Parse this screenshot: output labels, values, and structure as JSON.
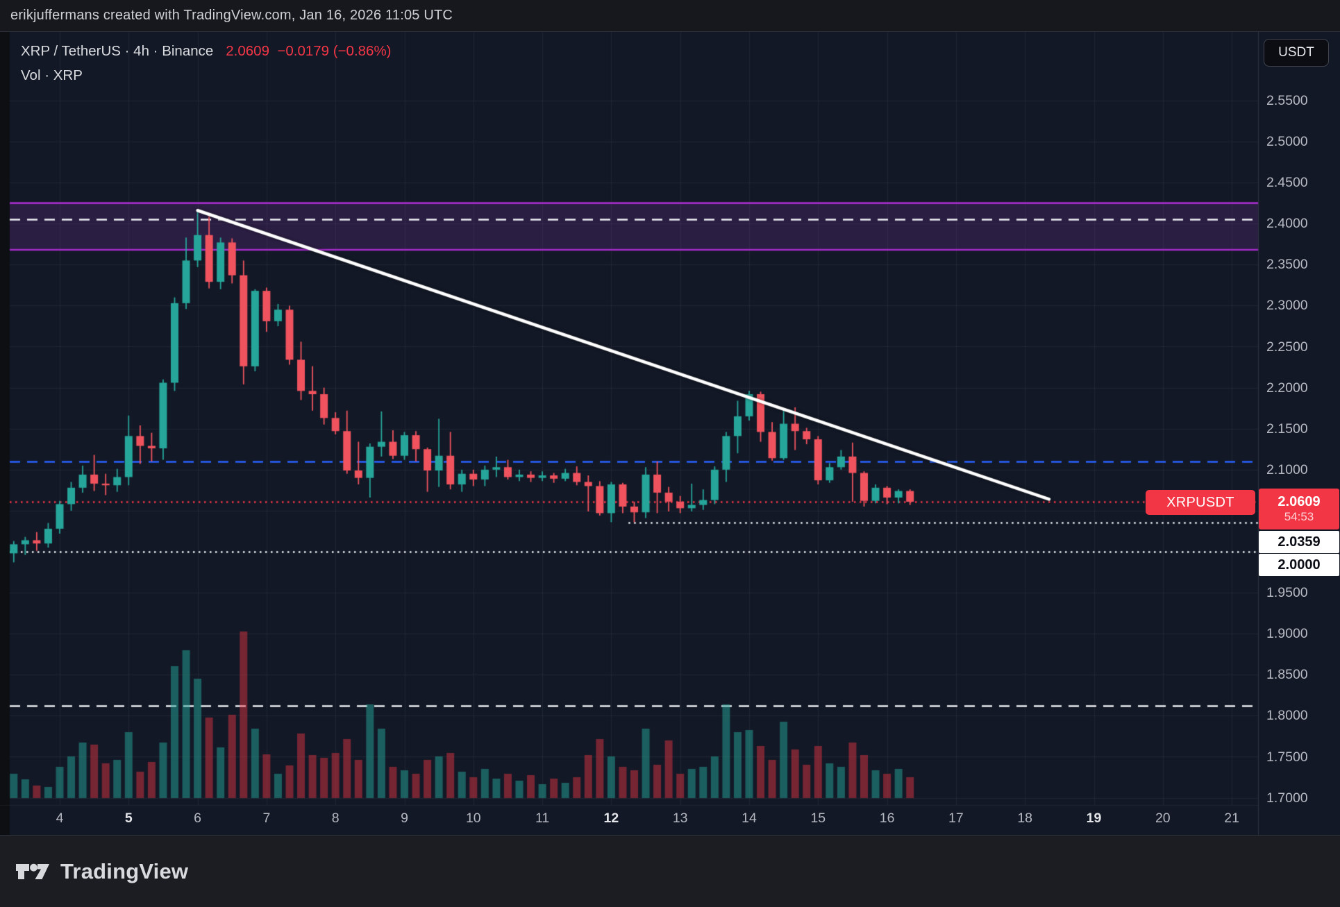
{
  "window": {
    "attribution": "erikjuffermans created with TradingView.com, Jan 16, 2026 11:05 UTC"
  },
  "legend": {
    "title": "XRP / TetherUS · 4h · Binance",
    "price": "2.0609",
    "change": "−0.0179 (−0.86%)",
    "indicator": "Vol · XRP"
  },
  "price_axis": {
    "currency": "USDT",
    "ticks": [
      "2.5500",
      "2.5000",
      "2.4500",
      "2.4000",
      "2.3500",
      "2.3000",
      "2.2500",
      "2.2000",
      "2.1500",
      "2.1000",
      "1.9500",
      "1.9000",
      "1.8500",
      "1.8000",
      "1.7500",
      "1.7000"
    ],
    "tick_values": [
      2.55,
      2.5,
      2.45,
      2.4,
      2.35,
      2.3,
      2.25,
      2.2,
      2.15,
      2.1,
      1.95,
      1.9,
      1.85,
      1.8,
      1.75,
      1.7
    ],
    "last_tag": {
      "price": "2.0609",
      "countdown": "54:53"
    },
    "level_tags": [
      "2.0359",
      "2.0000"
    ]
  },
  "time_axis": {
    "days": [
      4,
      5,
      6,
      7,
      8,
      9,
      10,
      11,
      12,
      13,
      14,
      15,
      16,
      17,
      18,
      19,
      20,
      21
    ],
    "bold_days": [
      5,
      12,
      19
    ]
  },
  "symbol_tag": "XRPUSDT",
  "footer": {
    "brand": "TradingView"
  },
  "colors": {
    "chart_bg": "#121826",
    "topbar_bg": "#17181d",
    "footer_bg": "#1b1d23",
    "gutter": "#0d0f13",
    "grid": "rgba(255,255,255,0.055)",
    "up": "#26a69a",
    "down": "#f0535e",
    "vol_up": "rgba(38,166,154,0.5)",
    "vol_down": "rgba(242,54,69,0.45)",
    "accent_red": "#f23645",
    "accent_blue": "#2962ff",
    "zone_line": "#a32cc8",
    "zone_fill": "rgba(160,60,200,0.18)",
    "white_line": "#eef0f4",
    "trendline": "#ffffff"
  },
  "chart_data": {
    "type": "candlestick",
    "title": "XRP / TetherUS · 4h · Binance",
    "symbol": "XRPUSDT",
    "exchange": "Binance",
    "interval": "4h",
    "last_price": 2.0609,
    "change": -0.0179,
    "change_pct": -0.86,
    "start_time": "Jan 3, 2026 08:00 UTC",
    "bar_interval_hours": 4,
    "x_axis_days_january": [
      4,
      5,
      6,
      7,
      8,
      9,
      10,
      11,
      12,
      13,
      14,
      15,
      16,
      17,
      18,
      19,
      20,
      21
    ],
    "ylim_visible": [
      1.7,
      2.58
    ],
    "grid": true,
    "volume_note": "v is relative volume height, max 240",
    "candles_ohlcv": [
      [
        1.998,
        2.013,
        1.987,
        2.009,
        35
      ],
      [
        2.009,
        2.018,
        1.996,
        2.014,
        27
      ],
      [
        2.014,
        2.024,
        2.001,
        2.01,
        18
      ],
      [
        2.01,
        2.035,
        2.005,
        2.028,
        16
      ],
      [
        2.028,
        2.062,
        2.022,
        2.058,
        45
      ],
      [
        2.058,
        2.085,
        2.05,
        2.078,
        60
      ],
      [
        2.078,
        2.105,
        2.072,
        2.094,
        80
      ],
      [
        2.094,
        2.118,
        2.074,
        2.083,
        77
      ],
      [
        2.083,
        2.095,
        2.069,
        2.081,
        50
      ],
      [
        2.081,
        2.101,
        2.073,
        2.091,
        55
      ],
      [
        2.091,
        2.166,
        2.081,
        2.141,
        95
      ],
      [
        2.141,
        2.154,
        2.107,
        2.129,
        38
      ],
      [
        2.129,
        2.145,
        2.11,
        2.126,
        52
      ],
      [
        2.126,
        2.21,
        2.112,
        2.206,
        80
      ],
      [
        2.206,
        2.31,
        2.196,
        2.303,
        190
      ],
      [
        2.303,
        2.383,
        2.296,
        2.355,
        213
      ],
      [
        2.355,
        2.416,
        2.347,
        2.386,
        172
      ],
      [
        2.386,
        2.409,
        2.321,
        2.329,
        116
      ],
      [
        2.329,
        2.383,
        2.32,
        2.377,
        73
      ],
      [
        2.377,
        2.382,
        2.327,
        2.337,
        120
      ],
      [
        2.337,
        2.355,
        2.204,
        2.226,
        240
      ],
      [
        2.226,
        2.32,
        2.22,
        2.318,
        100
      ],
      [
        2.318,
        2.322,
        2.268,
        2.281,
        63
      ],
      [
        2.281,
        2.302,
        2.275,
        2.295,
        35
      ],
      [
        2.295,
        2.3,
        2.228,
        2.234,
        47
      ],
      [
        2.234,
        2.256,
        2.185,
        2.196,
        93
      ],
      [
        2.196,
        2.226,
        2.172,
        2.192,
        62
      ],
      [
        2.192,
        2.2,
        2.155,
        2.163,
        58
      ],
      [
        2.163,
        2.17,
        2.143,
        2.147,
        65
      ],
      [
        2.147,
        2.172,
        2.095,
        2.099,
        85
      ],
      [
        2.099,
        2.134,
        2.082,
        2.09,
        55
      ],
      [
        2.09,
        2.132,
        2.066,
        2.128,
        135
      ],
      [
        2.128,
        2.171,
        2.116,
        2.134,
        100
      ],
      [
        2.134,
        2.148,
        2.113,
        2.117,
        45
      ],
      [
        2.117,
        2.146,
        2.112,
        2.142,
        40
      ],
      [
        2.142,
        2.147,
        2.11,
        2.125,
        35
      ],
      [
        2.125,
        2.127,
        2.073,
        2.099,
        55
      ],
      [
        2.099,
        2.162,
        2.079,
        2.117,
        60
      ],
      [
        2.117,
        2.146,
        2.076,
        2.082,
        65
      ],
      [
        2.082,
        2.1,
        2.073,
        2.095,
        38
      ],
      [
        2.095,
        2.1,
        2.08,
        2.088,
        30
      ],
      [
        2.088,
        2.105,
        2.08,
        2.1,
        42
      ],
      [
        2.1,
        2.116,
        2.091,
        2.103,
        28
      ],
      [
        2.103,
        2.112,
        2.088,
        2.091,
        35
      ],
      [
        2.091,
        2.1,
        2.086,
        2.094,
        25
      ],
      [
        2.094,
        2.098,
        2.085,
        2.09,
        33
      ],
      [
        2.09,
        2.098,
        2.086,
        2.093,
        20
      ],
      [
        2.093,
        2.096,
        2.084,
        2.089,
        28
      ],
      [
        2.089,
        2.101,
        2.086,
        2.096,
        22
      ],
      [
        2.096,
        2.104,
        2.081,
        2.085,
        30
      ],
      [
        2.085,
        2.093,
        2.049,
        2.08,
        62
      ],
      [
        2.08,
        2.086,
        2.044,
        2.047,
        85
      ],
      [
        2.047,
        2.085,
        2.036,
        2.082,
        60
      ],
      [
        2.082,
        2.084,
        2.047,
        2.055,
        45
      ],
      [
        2.055,
        2.061,
        2.036,
        2.048,
        40
      ],
      [
        2.048,
        2.103,
        2.041,
        2.094,
        100
      ],
      [
        2.094,
        2.11,
        2.047,
        2.072,
        48
      ],
      [
        2.072,
        2.079,
        2.049,
        2.061,
        83
      ],
      [
        2.061,
        2.068,
        2.047,
        2.053,
        35
      ],
      [
        2.053,
        2.083,
        2.049,
        2.057,
        42
      ],
      [
        2.057,
        2.076,
        2.051,
        2.063,
        45
      ],
      [
        2.063,
        2.104,
        2.058,
        2.1,
        60
      ],
      [
        2.1,
        2.146,
        2.085,
        2.141,
        135
      ],
      [
        2.141,
        2.184,
        2.12,
        2.165,
        95
      ],
      [
        2.165,
        2.196,
        2.16,
        2.192,
        98
      ],
      [
        2.192,
        2.195,
        2.134,
        2.146,
        75
      ],
      [
        2.146,
        2.158,
        2.111,
        2.114,
        55
      ],
      [
        2.114,
        2.175,
        2.112,
        2.156,
        110
      ],
      [
        2.156,
        2.176,
        2.124,
        2.147,
        70
      ],
      [
        2.147,
        2.151,
        2.131,
        2.137,
        48
      ],
      [
        2.137,
        2.141,
        2.082,
        2.087,
        75
      ],
      [
        2.087,
        2.108,
        2.084,
        2.103,
        50
      ],
      [
        2.103,
        2.124,
        2.1,
        2.116,
        45
      ],
      [
        2.116,
        2.133,
        2.061,
        2.096,
        80
      ],
      [
        2.096,
        2.098,
        2.055,
        2.062,
        62
      ],
      [
        2.062,
        2.082,
        2.059,
        2.078,
        40
      ],
      [
        2.078,
        2.08,
        2.058,
        2.066,
        35
      ],
      [
        2.066,
        2.076,
        2.059,
        2.074,
        42
      ],
      [
        2.074,
        2.076,
        2.057,
        2.0609,
        30
      ]
    ],
    "levels": [
      {
        "type": "zone",
        "name": "resistance-zone",
        "top": 2.425,
        "bottom": 2.368
      },
      {
        "type": "line",
        "name": "zone-mid",
        "price": 2.405,
        "style": "dashed",
        "color": "white"
      },
      {
        "type": "line",
        "name": "pivot",
        "price": 2.11,
        "style": "dashed",
        "color": "blue"
      },
      {
        "type": "line",
        "name": "last-price",
        "price": 2.0609,
        "style": "dotted",
        "color": "red"
      },
      {
        "type": "line",
        "name": "minor-support",
        "price": 2.0359,
        "style": "dotted",
        "color": "white",
        "from_day": 12.25
      },
      {
        "type": "line",
        "name": "round-support",
        "price": 2.0,
        "style": "dotted",
        "color": "white"
      },
      {
        "type": "line",
        "name": "lower-level",
        "price": 1.812,
        "style": "dashed",
        "color": "white"
      }
    ],
    "trendline": {
      "from": {
        "day": 6.0,
        "price": 2.416
      },
      "to": {
        "day": 18.35,
        "price": 2.064
      }
    }
  }
}
